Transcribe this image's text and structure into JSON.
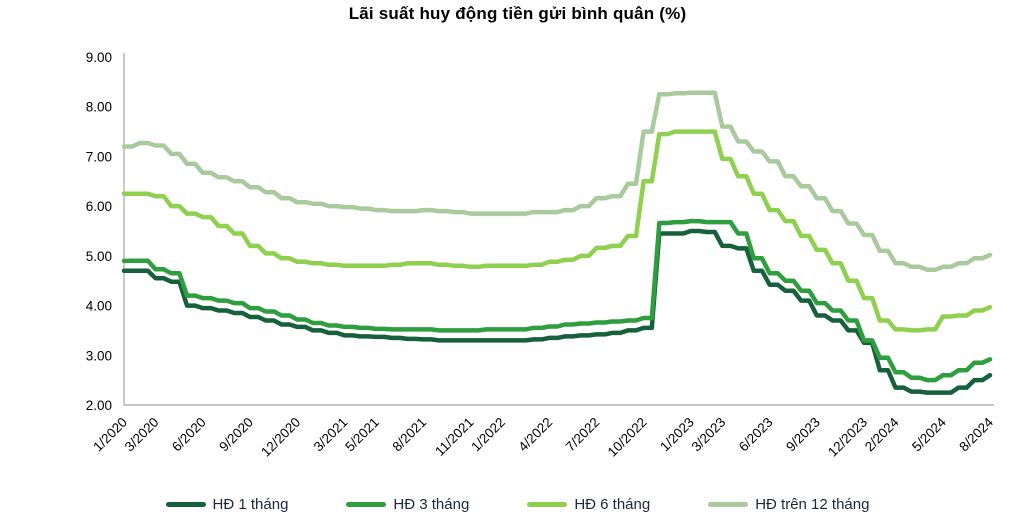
{
  "title": "Lãi suất huy động tiền gửi bình quân (%)",
  "colors": {
    "axis_line": "#b3b3b3",
    "tick_text": "#000000",
    "legend_text": "#1e2440"
  },
  "chart_data": {
    "type": "line",
    "title": "Lãi suất huy động tiền gửi bình quân (%)",
    "xlabel": "",
    "ylabel": "",
    "ylim": [
      2.0,
      9.0
    ],
    "grid": false,
    "legend_position": "bottom",
    "y_ticks": [
      "9.00",
      "8.00",
      "7.00",
      "6.00",
      "5.00",
      "4.00",
      "3.00",
      "2.00"
    ],
    "x": [
      "1/2020",
      "2/2020",
      "3/2020",
      "4/2020",
      "5/2020",
      "6/2020",
      "7/2020",
      "8/2020",
      "9/2020",
      "10/2020",
      "11/2020",
      "12/2020",
      "1/2021",
      "2/2021",
      "3/2021",
      "4/2021",
      "5/2021",
      "6/2021",
      "7/2021",
      "8/2021",
      "9/2021",
      "10/2021",
      "11/2021",
      "12/2021",
      "1/2022",
      "2/2022",
      "3/2022",
      "4/2022",
      "5/2022",
      "6/2022",
      "7/2022",
      "8/2022",
      "9/2022",
      "10/2022",
      "11/2022",
      "12/2022",
      "1/2023",
      "2/2023",
      "3/2023",
      "4/2023",
      "5/2023",
      "6/2023",
      "7/2023",
      "8/2023",
      "9/2023",
      "10/2023",
      "11/2023",
      "12/2023",
      "1/2024",
      "2/2024",
      "3/2024",
      "4/2024",
      "5/2024",
      "6/2024",
      "7/2024",
      "8/2024"
    ],
    "x_tick_labels": [
      {
        "label": "1/2020",
        "index": 0
      },
      {
        "label": "3/2020",
        "index": 2
      },
      {
        "label": "6/2020",
        "index": 5
      },
      {
        "label": "9/2020",
        "index": 8
      },
      {
        "label": "12/2020",
        "index": 11
      },
      {
        "label": "3/2021",
        "index": 14
      },
      {
        "label": "5/2021",
        "index": 16
      },
      {
        "label": "8/2021",
        "index": 19
      },
      {
        "label": "11/2021",
        "index": 22
      },
      {
        "label": "1/2022",
        "index": 24
      },
      {
        "label": "4/2022",
        "index": 27
      },
      {
        "label": "7/2022",
        "index": 30
      },
      {
        "label": "10/2022",
        "index": 33
      },
      {
        "label": "1/2023",
        "index": 36
      },
      {
        "label": "3/2023",
        "index": 38
      },
      {
        "label": "6/2023",
        "index": 41
      },
      {
        "label": "9/2023",
        "index": 44
      },
      {
        "label": "12/2023",
        "index": 47
      },
      {
        "label": "2/2024",
        "index": 49
      },
      {
        "label": "5/2024",
        "index": 52
      },
      {
        "label": "8/2024",
        "index": 55
      }
    ],
    "series": [
      {
        "name": "HĐ 1 tháng",
        "color": "#16613c",
        "values": [
          4.7,
          4.7,
          4.55,
          4.48,
          4.0,
          3.95,
          3.9,
          3.85,
          3.77,
          3.7,
          3.62,
          3.57,
          3.5,
          3.45,
          3.4,
          3.38,
          3.37,
          3.35,
          3.33,
          3.32,
          3.3,
          3.3,
          3.3,
          3.3,
          3.3,
          3.3,
          3.32,
          3.35,
          3.38,
          3.4,
          3.42,
          3.45,
          3.5,
          3.55,
          5.45,
          5.45,
          5.5,
          5.48,
          5.2,
          5.15,
          4.7,
          4.42,
          4.3,
          4.1,
          3.8,
          3.7,
          3.5,
          3.25,
          2.7,
          2.35,
          2.27,
          2.25,
          2.25,
          2.35,
          2.5,
          2.6
        ]
      },
      {
        "name": "HĐ 3 tháng",
        "color": "#2e9e3e",
        "values": [
          4.9,
          4.9,
          4.73,
          4.65,
          4.2,
          4.15,
          4.1,
          4.05,
          3.95,
          3.88,
          3.8,
          3.72,
          3.65,
          3.6,
          3.57,
          3.55,
          3.53,
          3.52,
          3.52,
          3.52,
          3.5,
          3.5,
          3.5,
          3.52,
          3.52,
          3.52,
          3.55,
          3.58,
          3.62,
          3.64,
          3.66,
          3.68,
          3.7,
          3.75,
          5.66,
          5.68,
          5.7,
          5.68,
          5.68,
          5.45,
          4.95,
          4.65,
          4.5,
          4.3,
          4.05,
          3.9,
          3.7,
          3.3,
          2.95,
          2.66,
          2.55,
          2.5,
          2.6,
          2.7,
          2.85,
          2.92
        ]
      },
      {
        "name": "HĐ 6 tháng",
        "color": "#8fd04f",
        "values": [
          6.25,
          6.25,
          6.2,
          6.0,
          5.85,
          5.78,
          5.6,
          5.45,
          5.2,
          5.05,
          4.95,
          4.88,
          4.85,
          4.82,
          4.8,
          4.8,
          4.8,
          4.82,
          4.85,
          4.85,
          4.82,
          4.8,
          4.78,
          4.8,
          4.8,
          4.8,
          4.82,
          4.88,
          4.92,
          5.0,
          5.16,
          5.2,
          5.4,
          6.5,
          7.45,
          7.5,
          7.5,
          7.5,
          6.95,
          6.6,
          6.25,
          5.92,
          5.7,
          5.4,
          5.12,
          4.85,
          4.5,
          4.15,
          3.7,
          3.52,
          3.5,
          3.52,
          3.78,
          3.8,
          3.9,
          3.97
        ]
      },
      {
        "name": "HĐ trên 12 tháng",
        "color": "#a9ca9c",
        "values": [
          7.2,
          7.27,
          7.22,
          7.05,
          6.85,
          6.67,
          6.58,
          6.5,
          6.38,
          6.28,
          6.16,
          6.08,
          6.05,
          6.0,
          5.98,
          5.95,
          5.92,
          5.9,
          5.9,
          5.92,
          5.9,
          5.88,
          5.85,
          5.85,
          5.85,
          5.85,
          5.88,
          5.88,
          5.92,
          6.0,
          6.16,
          6.2,
          6.45,
          7.5,
          8.25,
          8.27,
          8.28,
          8.28,
          7.6,
          7.3,
          7.1,
          6.9,
          6.6,
          6.4,
          6.16,
          5.9,
          5.65,
          5.42,
          5.1,
          4.85,
          4.78,
          4.72,
          4.78,
          4.85,
          4.95,
          5.02
        ]
      }
    ]
  }
}
